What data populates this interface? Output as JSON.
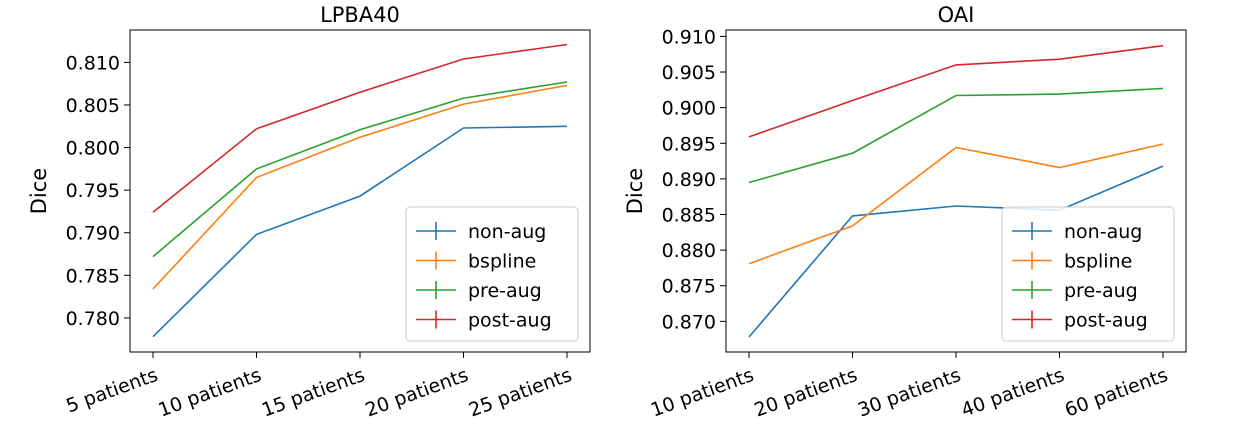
{
  "chart_data": [
    {
      "type": "line",
      "title": "LPBA40",
      "xlabel": "",
      "ylabel": "Dice",
      "categories": [
        "5 patients",
        "10 patients",
        "15 patients",
        "20 patients",
        "25 patients"
      ],
      "ylim": [
        0.776,
        0.8138
      ],
      "yticks": [
        0.78,
        0.785,
        0.79,
        0.795,
        0.8,
        0.805,
        0.81
      ],
      "ytick_labels": [
        "0.780",
        "0.785",
        "0.790",
        "0.795",
        "0.800",
        "0.805",
        "0.810"
      ],
      "legend_position": "lower-right",
      "series": [
        {
          "name": "non-aug",
          "color": "#1f77b4",
          "values": [
            0.7778,
            0.7898,
            0.7943,
            0.8023,
            0.8025
          ]
        },
        {
          "name": "bspline",
          "color": "#ff7f0e",
          "values": [
            0.7834,
            0.7965,
            0.8012,
            0.8051,
            0.8073
          ]
        },
        {
          "name": "pre-aug",
          "color": "#2ca02c",
          "values": [
            0.7872,
            0.7975,
            0.8021,
            0.8058,
            0.8077
          ]
        },
        {
          "name": "post-aug",
          "color": "#d62728",
          "values": [
            0.7924,
            0.8022,
            0.8065,
            0.8104,
            0.8121
          ]
        }
      ]
    },
    {
      "type": "line",
      "title": "OAI",
      "xlabel": "",
      "ylabel": "Dice",
      "categories": [
        "10 patients",
        "20 patients",
        "30 patients",
        "40 patients",
        "60 patients"
      ],
      "ylim": [
        0.8657,
        0.9109
      ],
      "yticks": [
        0.87,
        0.875,
        0.88,
        0.885,
        0.89,
        0.895,
        0.9,
        0.905,
        0.91
      ],
      "ytick_labels": [
        "0.870",
        "0.875",
        "0.880",
        "0.885",
        "0.890",
        "0.895",
        "0.900",
        "0.905",
        "0.910"
      ],
      "legend_position": "lower-right",
      "series": [
        {
          "name": "non-aug",
          "color": "#1f77b4",
          "values": [
            0.8678,
            0.8848,
            0.8862,
            0.8856,
            0.8918
          ]
        },
        {
          "name": "bspline",
          "color": "#ff7f0e",
          "values": [
            0.8781,
            0.8834,
            0.8944,
            0.8916,
            0.8949
          ]
        },
        {
          "name": "pre-aug",
          "color": "#2ca02c",
          "values": [
            0.8895,
            0.8936,
            0.9017,
            0.9019,
            0.9027
          ]
        },
        {
          "name": "post-aug",
          "color": "#d62728",
          "values": [
            0.8959,
            0.901,
            0.906,
            0.9068,
            0.9087
          ]
        }
      ]
    }
  ]
}
